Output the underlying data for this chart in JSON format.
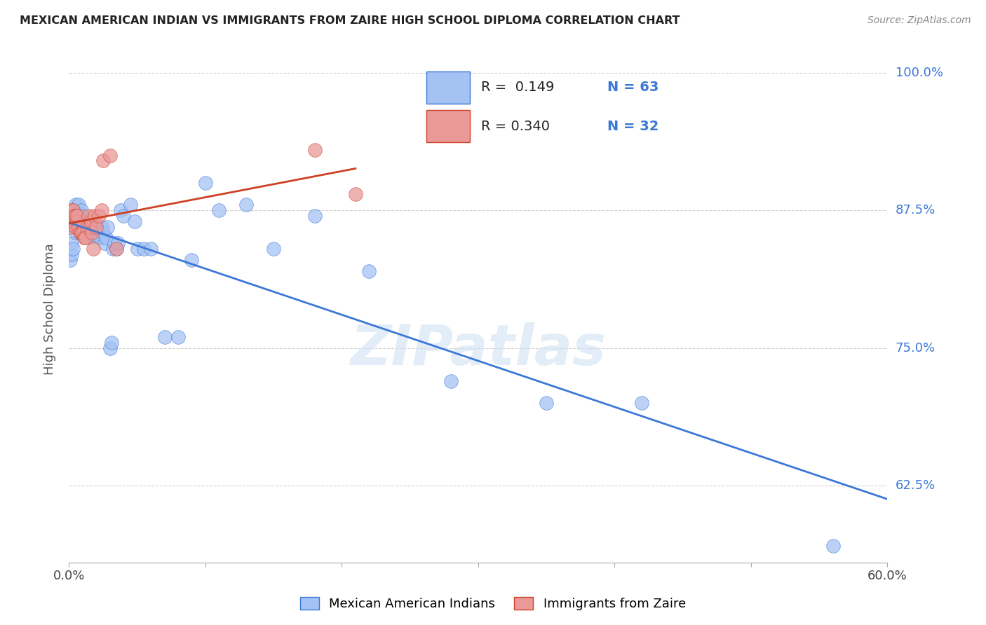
{
  "title": "MEXICAN AMERICAN INDIAN VS IMMIGRANTS FROM ZAIRE HIGH SCHOOL DIPLOMA CORRELATION CHART",
  "source": "Source: ZipAtlas.com",
  "ylabel": "High School Diploma",
  "legend_label1": "Mexican American Indians",
  "legend_label2": "Immigrants from Zaire",
  "r1": "0.149",
  "n1": "63",
  "r2": "0.340",
  "n2": "32",
  "color_blue": "#a4c2f4",
  "color_pink": "#ea9999",
  "color_line_blue": "#3c78d8",
  "color_line_pink": "#cc4125",
  "blue_points_x": [
    0.001,
    0.002,
    0.002,
    0.003,
    0.003,
    0.004,
    0.004,
    0.005,
    0.005,
    0.005,
    0.006,
    0.007,
    0.007,
    0.008,
    0.008,
    0.009,
    0.009,
    0.01,
    0.01,
    0.011,
    0.012,
    0.013,
    0.014,
    0.015,
    0.016,
    0.017,
    0.018,
    0.019,
    0.02,
    0.021,
    0.022,
    0.023,
    0.024,
    0.025,
    0.026,
    0.027,
    0.028,
    0.03,
    0.031,
    0.032,
    0.033,
    0.035,
    0.036,
    0.038,
    0.04,
    0.045,
    0.048,
    0.05,
    0.055,
    0.06,
    0.07,
    0.08,
    0.09,
    0.1,
    0.11,
    0.13,
    0.15,
    0.18,
    0.22,
    0.28,
    0.35,
    0.42,
    0.56
  ],
  "blue_points_y": [
    0.83,
    0.835,
    0.845,
    0.84,
    0.87,
    0.86,
    0.875,
    0.855,
    0.87,
    0.88,
    0.86,
    0.865,
    0.88,
    0.855,
    0.87,
    0.86,
    0.875,
    0.86,
    0.87,
    0.855,
    0.855,
    0.865,
    0.855,
    0.85,
    0.86,
    0.86,
    0.855,
    0.86,
    0.855,
    0.855,
    0.85,
    0.85,
    0.86,
    0.855,
    0.845,
    0.85,
    0.86,
    0.75,
    0.755,
    0.84,
    0.845,
    0.84,
    0.845,
    0.875,
    0.87,
    0.88,
    0.865,
    0.84,
    0.84,
    0.84,
    0.76,
    0.76,
    0.83,
    0.9,
    0.875,
    0.88,
    0.84,
    0.87,
    0.82,
    0.72,
    0.7,
    0.7,
    0.57
  ],
  "pink_points_x": [
    0.001,
    0.002,
    0.002,
    0.003,
    0.003,
    0.004,
    0.004,
    0.005,
    0.005,
    0.006,
    0.006,
    0.007,
    0.008,
    0.009,
    0.01,
    0.011,
    0.012,
    0.013,
    0.014,
    0.015,
    0.016,
    0.017,
    0.018,
    0.019,
    0.02,
    0.022,
    0.024,
    0.025,
    0.03,
    0.035,
    0.18,
    0.21
  ],
  "pink_points_y": [
    0.86,
    0.87,
    0.875,
    0.865,
    0.875,
    0.865,
    0.87,
    0.86,
    0.87,
    0.865,
    0.87,
    0.86,
    0.855,
    0.855,
    0.855,
    0.85,
    0.85,
    0.86,
    0.87,
    0.86,
    0.865,
    0.855,
    0.84,
    0.87,
    0.86,
    0.87,
    0.875,
    0.92,
    0.925,
    0.84,
    0.93,
    0.89
  ],
  "xlim": [
    0.0,
    0.6
  ],
  "ylim": [
    0.555,
    1.015
  ],
  "x_ticks": [
    0.0,
    0.1,
    0.2,
    0.3,
    0.4,
    0.5,
    0.6
  ],
  "x_tick_show": [
    0.0,
    0.6
  ],
  "y_ticks": [
    0.625,
    0.75,
    0.875,
    1.0
  ],
  "y_tick_labels": [
    "62.5%",
    "75.0%",
    "87.5%",
    "100.0%"
  ],
  "watermark": "ZIPatlas",
  "background_color": "#ffffff",
  "grid_color": "#d0d0d0"
}
